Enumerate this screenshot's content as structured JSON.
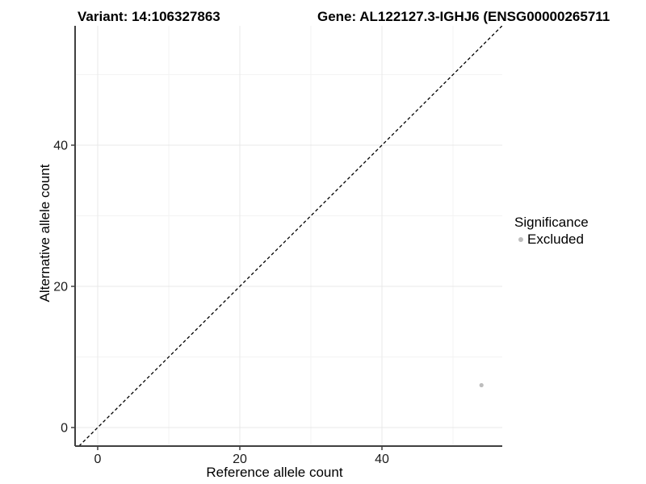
{
  "titles": {
    "variant": "Variant: 14:106327863",
    "gene": "Gene: AL122127.3-IGHJ6 (ENSG00000265711"
  },
  "chart_data": {
    "type": "scatter",
    "xlabel": "Reference allele count",
    "ylabel": "Alternative allele count",
    "xlim": [
      -3.18,
      56.93
    ],
    "ylim": [
      -2.63,
      56.91
    ],
    "x_major_ticks": [
      0,
      20,
      40
    ],
    "x_minor_ticks": [
      10,
      30,
      50
    ],
    "y_major_ticks": [
      0,
      20,
      40
    ],
    "y_minor_ticks": [
      10,
      30,
      50
    ],
    "identity_line": {
      "shown": true,
      "style": "dashed",
      "color": "#000000"
    },
    "series": [
      {
        "name": "Excluded",
        "color": "#bdbdbd",
        "points": [
          {
            "x": 54,
            "y": 6
          }
        ]
      }
    ],
    "legend": {
      "title": "Significance",
      "position": "right",
      "items": [
        {
          "label": "Excluded",
          "color": "#bdbdbd"
        }
      ]
    },
    "grid": {
      "major_color": "#e8e8e8",
      "minor_color": "#f3f3f3",
      "shown": true
    },
    "axis_color": "#404040",
    "tick_label_color": "#1a1a1a"
  }
}
